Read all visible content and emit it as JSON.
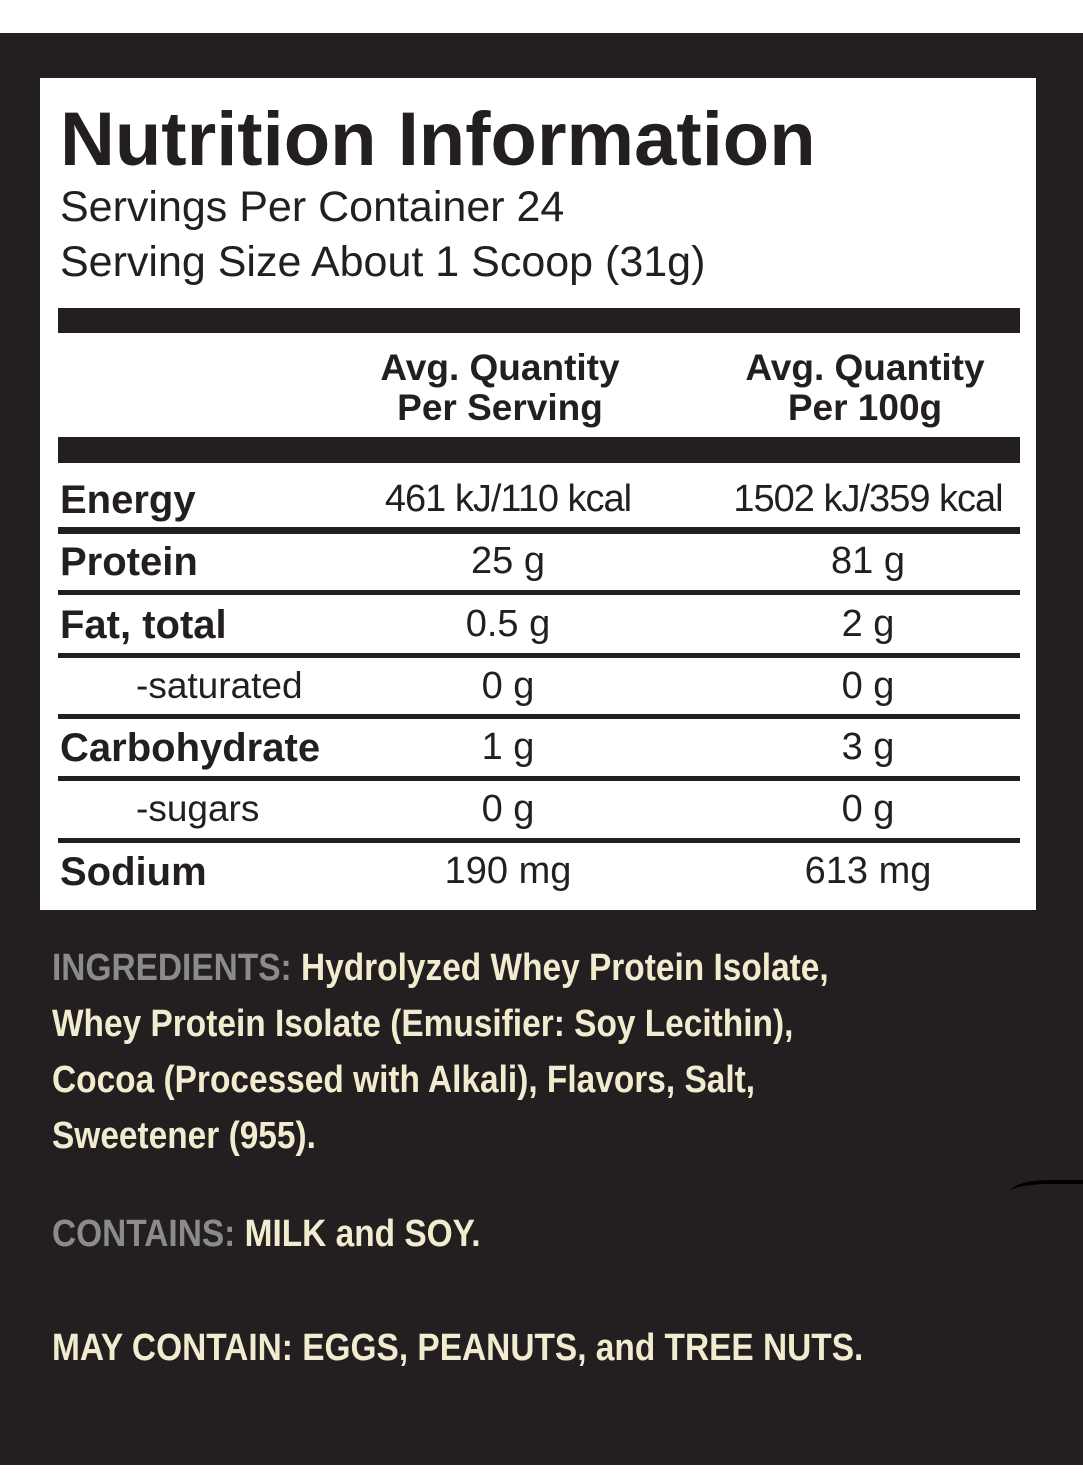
{
  "label": {
    "title": "Nutrition Information",
    "servings_per_container": "Servings Per Container 24",
    "serving_size": "Serving Size About 1 Scoop (31g)",
    "columns": [
      {
        "line1": "Avg. Quantity",
        "line2": "Per Serving"
      },
      {
        "line1": "Avg. Quantity",
        "line2": "Per 100g"
      }
    ],
    "rows": [
      {
        "name": "Energy",
        "per_serving": "461 kJ/110 kcal",
        "per_100g": "1502 kJ/359 kcal"
      },
      {
        "name": "Protein",
        "per_serving": "25 g",
        "per_100g": "81 g"
      },
      {
        "name": "Fat, total",
        "per_serving": "0.5 g",
        "per_100g": "2 g"
      },
      {
        "name": "-saturated",
        "per_serving": "0 g",
        "per_100g": "0 g"
      },
      {
        "name": "Carbohydrate",
        "per_serving": "1 g",
        "per_100g": "3 g"
      },
      {
        "name": "-sugars",
        "per_serving": "0 g",
        "per_100g": "0 g"
      },
      {
        "name": "Sodium",
        "per_serving": "190 mg",
        "per_100g": "613 mg"
      }
    ]
  },
  "ingredients": {
    "label": "INGREDIENTS:",
    "text": "Hydrolyzed Whey Protein Isolate, Whey Protein Isolate (Emusifier: Soy Lecithin), Cocoa (Processed with Alkali), Flavors, Salt, Sweetener (955)."
  },
  "contains": {
    "label": "CONTAINS:",
    "text": "MILK and SOY."
  },
  "may_contain": {
    "label": "MAY CONTAIN:",
    "text": "EGGS, PEANUTS, and TREE NUTS."
  },
  "colors": {
    "background": "#231f20",
    "text": "#f1ebcf",
    "label_grey": "#8b8b8b"
  }
}
